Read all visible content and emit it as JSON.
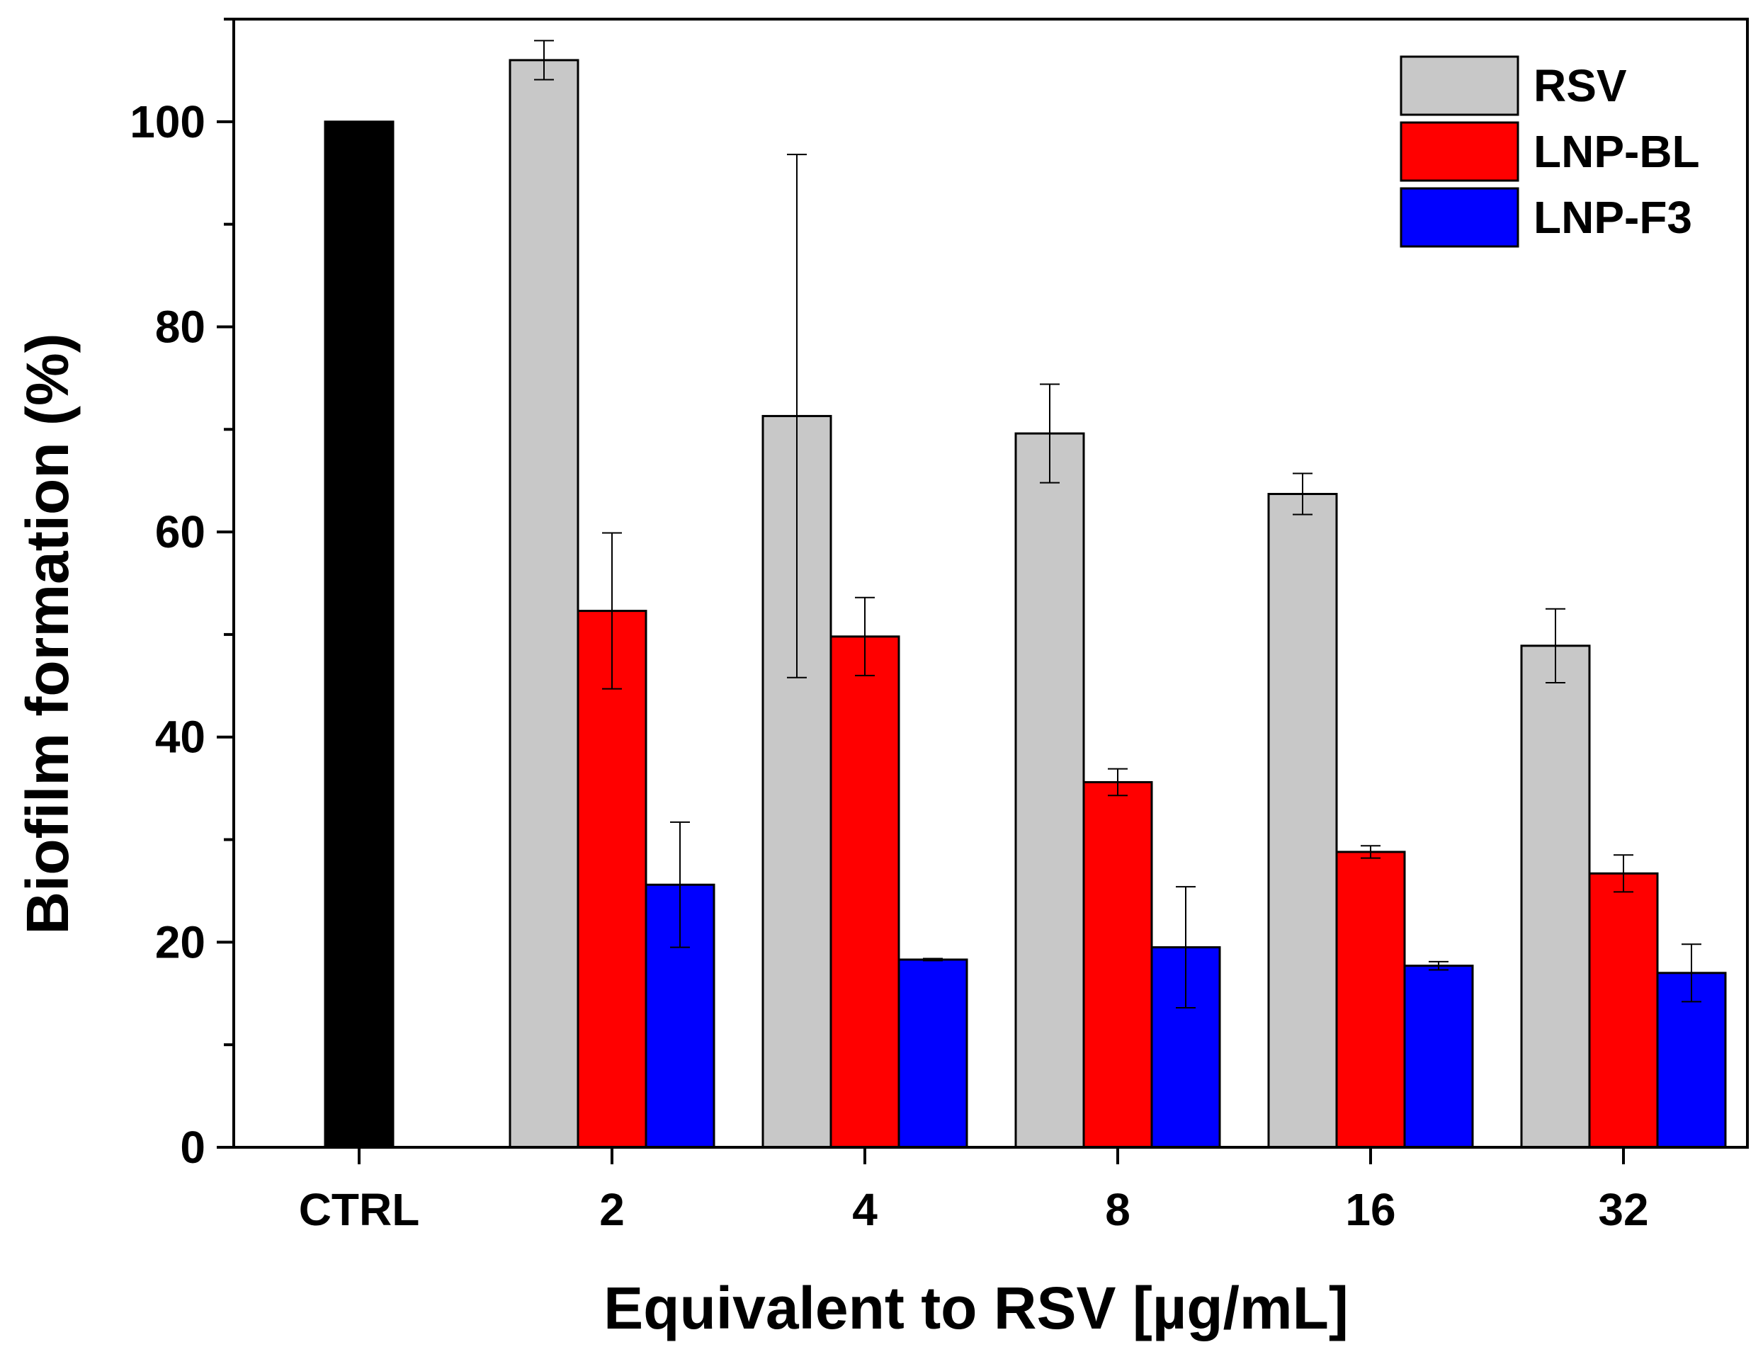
{
  "chart_data": {
    "type": "bar",
    "xlabel": "Equivalent to RSV [µg/mL]",
    "ylabel": "Biofilm formation (%)",
    "ylim": [
      0,
      110
    ],
    "yticks": [
      0,
      20,
      40,
      60,
      80,
      100
    ],
    "y_minor_step": 10,
    "legend_position": "top-right",
    "control": {
      "label": "CTRL",
      "value": 100,
      "color": "#000000"
    },
    "categories": [
      "2",
      "4",
      "8",
      "16",
      "32"
    ],
    "series": [
      {
        "name": "RSV",
        "color": "#c8c8c8",
        "values": [
          106,
          71.3,
          69.6,
          63.7,
          48.9
        ],
        "errors": [
          1.9,
          25.5,
          4.8,
          2.0,
          3.6
        ]
      },
      {
        "name": "LNP-BL",
        "color": "#ff0000",
        "values": [
          52.3,
          49.8,
          35.6,
          28.8,
          26.7
        ],
        "errors": [
          7.6,
          3.8,
          1.3,
          0.6,
          1.8
        ]
      },
      {
        "name": "LNP-F3",
        "color": "#0000ff",
        "values": [
          25.6,
          18.3,
          19.5,
          17.7,
          17.0
        ],
        "errors": [
          6.1,
          0.1,
          5.9,
          0.4,
          2.8
        ]
      }
    ]
  }
}
